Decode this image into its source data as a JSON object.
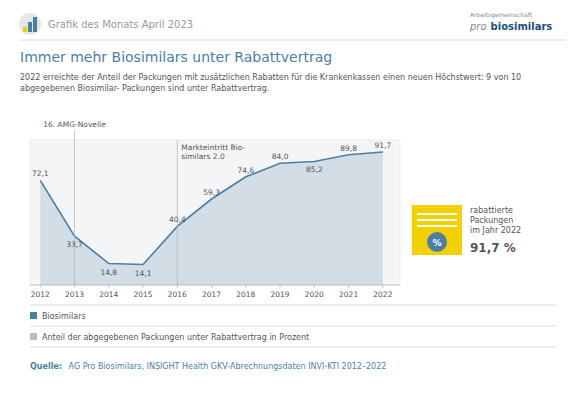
{
  "chart_data": {
    "type": "area",
    "header": "Grafik des Monats April 2023",
    "logo": [
      "Arbeitsgemeinschaft",
      "pro",
      "biosimilars"
    ],
    "title": "Immer mehr Biosimilars unter Rabattvertrag",
    "subtitle": "2022 erreichte der Anteil der Packungen mit zusätzlichen Rabatten für die Krankenkassen einen neuen Höchstwert: 9 von 10\nabgegebenen Biosimilar- Packungen sind unter Rabattvertrag.",
    "x": [
      2012,
      2013,
      2014,
      2015,
      2016,
      2017,
      2018,
      2019,
      2020,
      2021,
      2022
    ],
    "xlim": [
      2011.7,
      2022.5
    ],
    "xticks": [
      2012,
      2013,
      2014,
      2015,
      2016,
      2017,
      2018,
      2019,
      2020,
      2021,
      2022
    ],
    "ylim": [
      0,
      100
    ],
    "yticks": [],
    "tick_labels": "x",
    "grid": false,
    "data_labels": true,
    "legend": "bottom",
    "series": [
      {
        "name": "Biosimilars",
        "color": "#4a7fa5",
        "values": [
          72.1,
          33.7,
          14.8,
          14.1,
          40.4,
          59.3,
          74.6,
          84.0,
          85.2,
          89.8,
          91.7
        ],
        "value_labels": [
          "72,1",
          "33,7",
          "14,8",
          "14,1",
          "40,4",
          "59,3",
          "74,6",
          "84,0",
          "85,2",
          "89,8",
          "91,7"
        ]
      }
    ],
    "note": "Anteil der abgegebenen Packungen unter Rabattvertrag in Prozent",
    "annotations": [
      {
        "x": 2013,
        "text": "16. AMG-Novelle"
      },
      {
        "x": 2016,
        "text": "Markteintritt Bio-\nsimilars 2.0"
      }
    ],
    "highlight": {
      "color": "#f5d000",
      "icon_text": "%",
      "texts": [
        "rabattierte",
        "Packungen",
        "im Jahr 2022",
        "91,7 %"
      ]
    },
    "source_label": "Quelle:",
    "source": "  AG Pro Biosimilars, INSIGHT Health GKV-Abrechnungsdaten INVI-KTI 2012–2022"
  }
}
